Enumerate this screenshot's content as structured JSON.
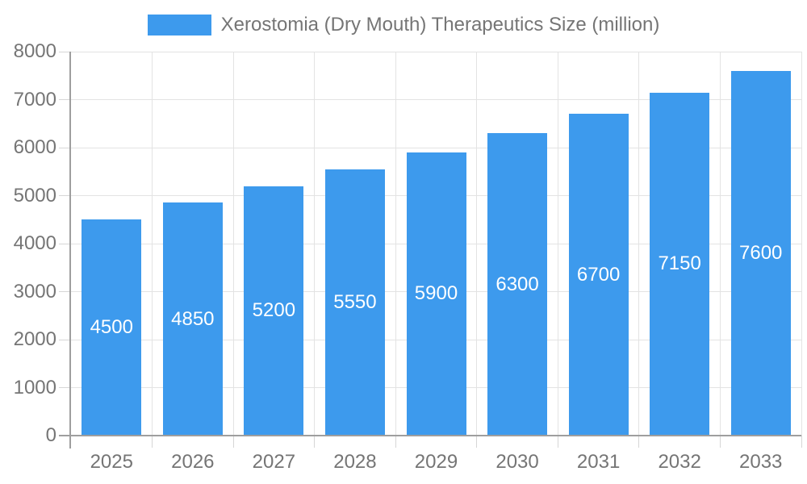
{
  "chart_data": {
    "type": "bar",
    "title": "Xerostomia (Dry Mouth) Therapeutics Size (million)",
    "legend": {
      "position": "top",
      "label": "Xerostomia (Dry Mouth) Therapeutics Size (million)"
    },
    "categories": [
      "2025",
      "2026",
      "2027",
      "2028",
      "2029",
      "2030",
      "2031",
      "2032",
      "2033"
    ],
    "values": [
      4500,
      4850,
      5200,
      5550,
      5900,
      6300,
      6700,
      7150,
      7600
    ],
    "xlabel": "",
    "ylabel": "",
    "ylim": [
      0,
      8000
    ],
    "y_tick_step": 1000,
    "y_tick_labels": [
      "0",
      "1000",
      "2000",
      "3000",
      "4000",
      "5000",
      "6000",
      "7000",
      "8000"
    ],
    "grid": true,
    "value_labels_inside_bars": true
  },
  "colors": {
    "bar": "#3D9AED",
    "text": "#757575",
    "value_label": "#FFFFFF",
    "gridline": "#E3E3E3",
    "tick": "#D6D6D6",
    "axis": "#9E9E9E",
    "background": "#FFFFFF"
  }
}
